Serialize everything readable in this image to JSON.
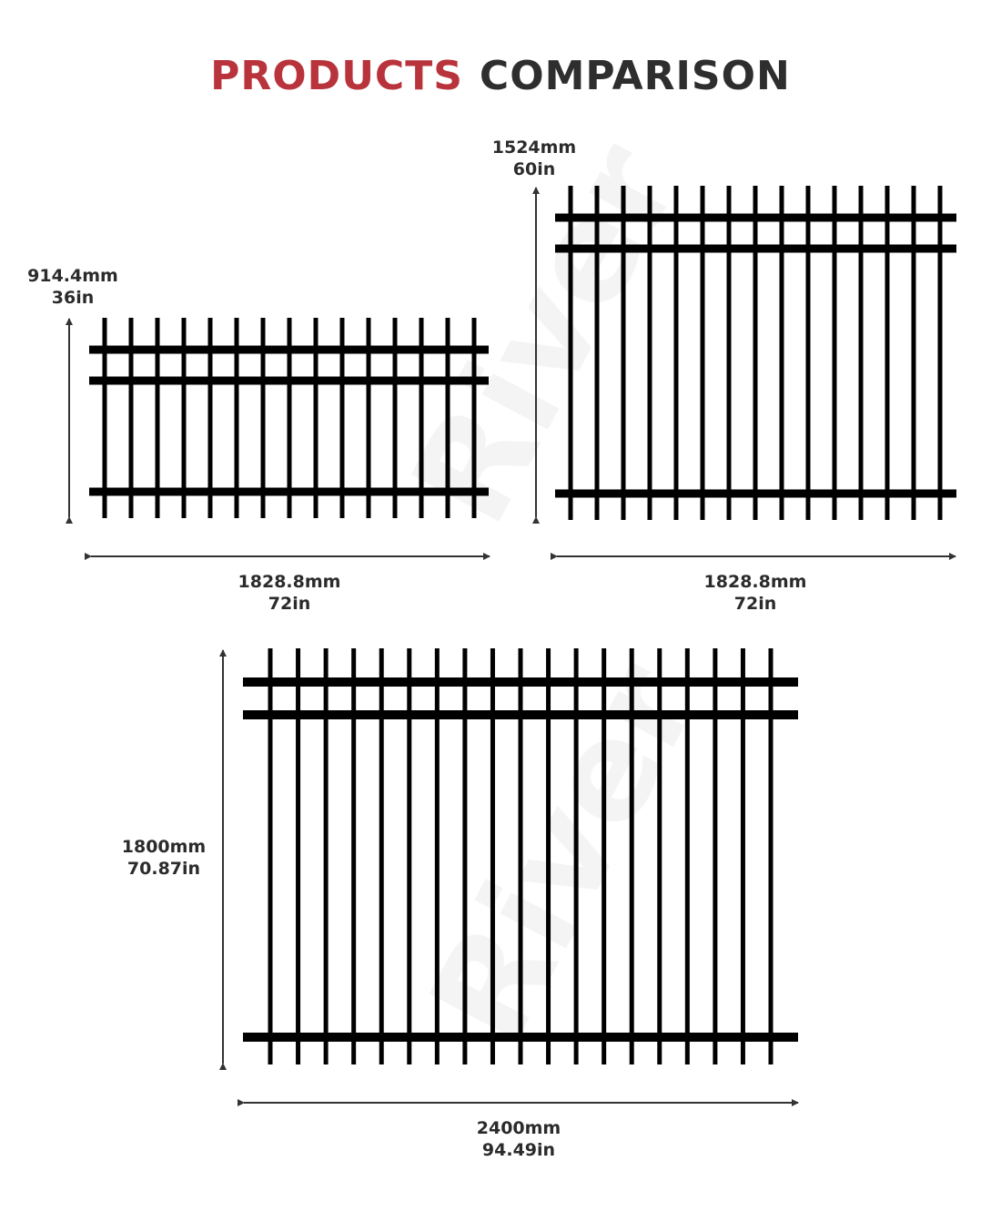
{
  "title": {
    "word1": "PRODUCTS",
    "word2": "COMPARISON",
    "word1_color": "#b8333b",
    "word2_color": "#2e2e2e"
  },
  "watermark": "River",
  "fences": [
    {
      "height_mm": "914.4mm",
      "height_in": "36in",
      "width_mm": "1828.8mm",
      "width_in": "72in",
      "pickets": 15,
      "rails": 3
    },
    {
      "height_mm": "1524mm",
      "height_in": "60in",
      "width_mm": "1828.8mm",
      "width_in": "72in",
      "pickets": 15,
      "rails": 3
    },
    {
      "height_mm": "1800mm",
      "height_in": "70.87in",
      "width_mm": "2400mm",
      "width_in": "94.49in",
      "pickets": 19,
      "rails": 3
    }
  ]
}
